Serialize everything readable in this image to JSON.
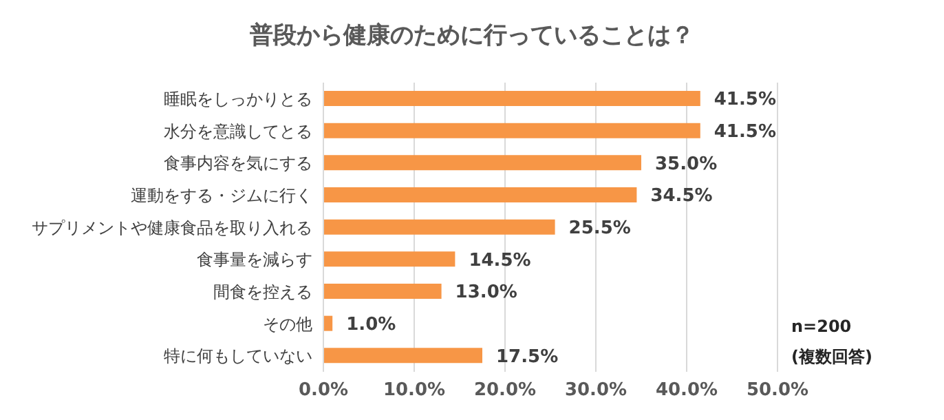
{
  "chart_data": {
    "type": "bar",
    "orientation": "horizontal",
    "title": "普段から健康のために行っていることは？",
    "categories": [
      "睡眠をしっかりとる",
      "水分を意識してとる",
      "食事内容を気にする",
      "運動をする・ジムに行く",
      "サプリメントや健康食品を取り入れる",
      "食事量を減らす",
      "間食を控える",
      "その他",
      "特に何もしていない"
    ],
    "values": [
      41.5,
      41.5,
      35.0,
      34.5,
      25.5,
      14.5,
      13.0,
      1.0,
      17.5
    ],
    "value_labels": [
      "41.5%",
      "41.5%",
      "35.0%",
      "34.5%",
      "25.5%",
      "14.5%",
      "13.0%",
      "1.0%",
      "17.5%"
    ],
    "color": "#f79646",
    "xlim": [
      0,
      50
    ],
    "xticks": [
      {
        "value": 0,
        "label": "0.0%"
      },
      {
        "value": 10,
        "label": "10.0%"
      },
      {
        "value": 20,
        "label": "20.0%"
      },
      {
        "value": 30,
        "label": "30.0%"
      },
      {
        "value": 40,
        "label": "40.0%"
      },
      {
        "value": 50,
        "label": "50.0%"
      }
    ],
    "grid": "x",
    "annotations": [
      "n=200",
      "(複数回答)"
    ]
  }
}
